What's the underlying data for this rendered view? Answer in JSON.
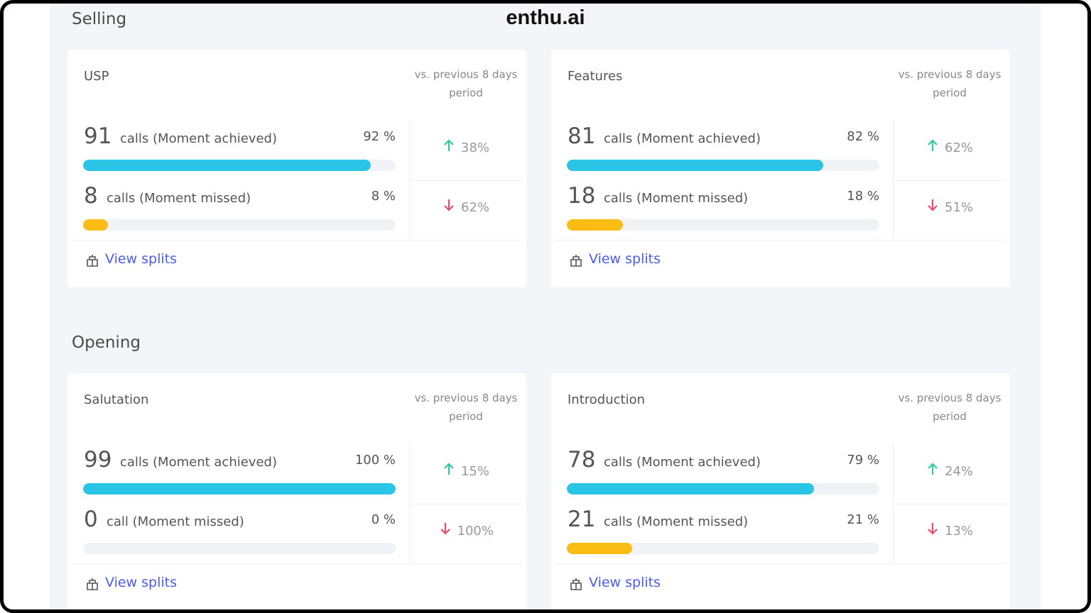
{
  "brand": "enthu.ai",
  "sections": [
    {
      "title": "Selling",
      "cards": [
        {
          "title": "USP",
          "comparison_label": "vs. previous 8 days period",
          "link": "View splits",
          "rows": [
            {
              "count": 91,
              "label": "calls (Moment achieved)",
              "percent": {
                "value": 92,
                "label": "92 %"
              },
              "color": "#29c4e6",
              "change": "38%",
              "direction": "up"
            },
            {
              "count": 8,
              "label": "calls (Moment missed)",
              "percent": {
                "value": 8,
                "label": "8 %"
              },
              "color": "#fbbd13",
              "change": "62%",
              "direction": "down"
            }
          ]
        },
        {
          "title": "Features",
          "comparison_label": "vs. previous 8 days period",
          "link": "View splits",
          "rows": [
            {
              "count": 81,
              "label": "calls (Moment achieved)",
              "percent": {
                "value": 82,
                "label": "82 %"
              },
              "color": "#29c4e6",
              "change": "62%",
              "direction": "up"
            },
            {
              "count": 18,
              "label": "calls (Moment missed)",
              "percent": {
                "value": 18,
                "label": "18 %"
              },
              "color": "#fbbd13",
              "change": "51%",
              "direction": "down"
            }
          ]
        }
      ]
    },
    {
      "title": "Opening",
      "cards": [
        {
          "title": "Salutation",
          "comparison_label": "vs. previous 8 days period",
          "link": "View splits",
          "rows": [
            {
              "count": 99,
              "label": "calls (Moment achieved)",
              "percent": {
                "value": 100,
                "label": "100 %"
              },
              "color": "#29c4e6",
              "change": "15%",
              "direction": "up"
            },
            {
              "count": 0,
              "label": "call (Moment missed)",
              "percent": {
                "value": 0,
                "label": "0 %"
              },
              "color": "#fbbd13",
              "change": "100%",
              "direction": "down"
            }
          ]
        },
        {
          "title": "Introduction",
          "comparison_label": "vs. previous 8 days period",
          "link": "View splits",
          "rows": [
            {
              "count": 78,
              "label": "calls (Moment achieved)",
              "percent": {
                "value": 79,
                "label": "79 %"
              },
              "color": "#29c4e6",
              "change": "24%",
              "direction": "up"
            },
            {
              "count": 21,
              "label": "calls (Moment missed)",
              "percent": {
                "value": 21,
                "label": "21 %"
              },
              "color": "#fbbd13",
              "change": "13%",
              "direction": "down"
            }
          ]
        }
      ]
    }
  ]
}
